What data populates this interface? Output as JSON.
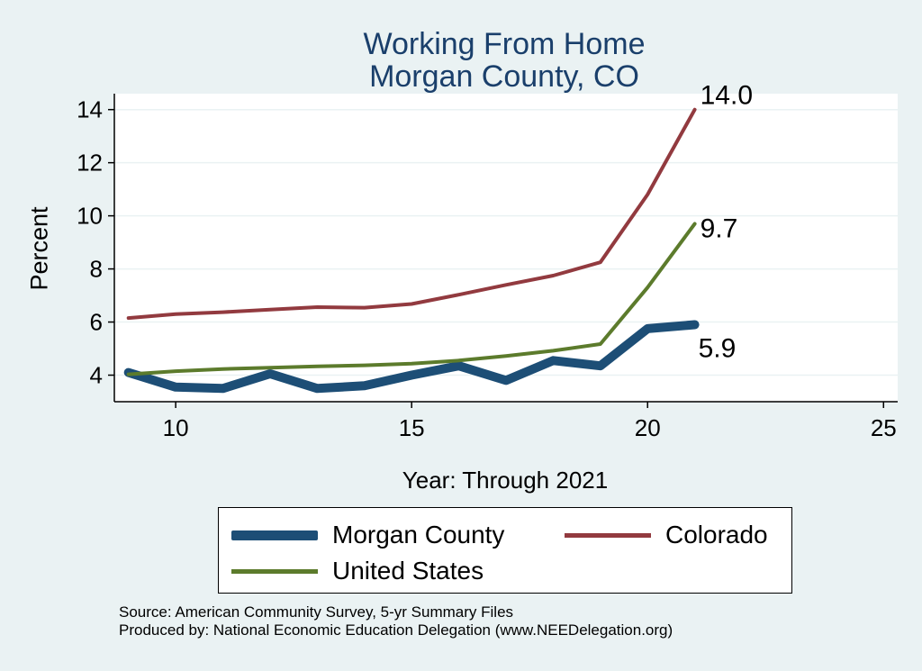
{
  "chart_data": {
    "type": "line",
    "title": "Working From Home",
    "subtitle": "Morgan County, CO",
    "xlabel": "Year: Through 2021",
    "ylabel": "Percent",
    "xlim": [
      8.7,
      25.3
    ],
    "ylim": [
      3.0,
      14.6
    ],
    "xticks": [
      10,
      15,
      20,
      25
    ],
    "yticks": [
      4,
      6,
      8,
      10,
      12,
      14
    ],
    "grid": true,
    "legend_position": "bottom",
    "series": [
      {
        "name": "Morgan County",
        "color": "#1d4e76",
        "x": [
          9,
          10,
          11,
          12,
          13,
          14,
          15,
          16,
          17,
          18,
          19,
          20,
          21
        ],
        "y": [
          4.1,
          3.55,
          3.5,
          4.05,
          3.5,
          3.6,
          4.0,
          4.35,
          3.8,
          4.55,
          4.35,
          5.75,
          5.9
        ],
        "end_label": "5.9"
      },
      {
        "name": "Colorado",
        "color": "#923a3f",
        "x": [
          9,
          10,
          11,
          12,
          13,
          14,
          15,
          16,
          17,
          18,
          19,
          20,
          21
        ],
        "y": [
          6.15,
          6.3,
          6.37,
          6.47,
          6.56,
          6.54,
          6.68,
          7.03,
          7.4,
          7.75,
          8.25,
          10.8,
          14.0
        ],
        "end_label": "14.0"
      },
      {
        "name": "United States",
        "color": "#5c7b2c",
        "x": [
          9,
          10,
          11,
          12,
          13,
          14,
          15,
          16,
          17,
          18,
          19,
          20,
          21
        ],
        "y": [
          4.03,
          4.15,
          4.23,
          4.28,
          4.33,
          4.37,
          4.43,
          4.55,
          4.72,
          4.92,
          5.17,
          7.3,
          9.7
        ],
        "end_label": "9.7"
      }
    ]
  },
  "notes": {
    "source": "Source: American Community Survey, 5-yr Summary Files",
    "produced_by": "Produced by: National Economic Education Delegation (www.NEEDelegation.org)"
  }
}
